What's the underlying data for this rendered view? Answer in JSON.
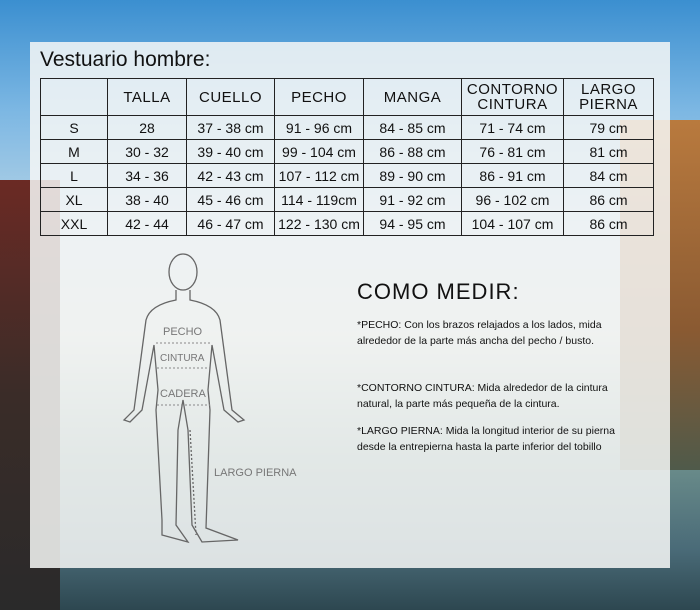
{
  "title": "Vestuario hombre:",
  "table": {
    "headers": [
      "",
      "TALLA",
      "CUELLO",
      "PECHO",
      "MANGA",
      "CONTORNO CINTURA",
      "LARGO PIERNA"
    ],
    "rows": [
      [
        "S",
        "28",
        "37 - 38 cm",
        "91 - 96 cm",
        "84 - 85 cm",
        "71 - 74 cm",
        "79 cm"
      ],
      [
        "M",
        "30 - 32",
        "39 - 40 cm",
        "99 - 104 cm",
        "86 - 88 cm",
        "76 - 81 cm",
        "81 cm"
      ],
      [
        "L",
        "34 - 36",
        "42 - 43 cm",
        "107 - 112 cm",
        "89 - 90 cm",
        "86 - 91 cm",
        "84 cm"
      ],
      [
        "XL",
        "38 - 40",
        "45 - 46 cm",
        "114 - 119cm",
        "91 - 92 cm",
        "96 - 102 cm",
        "86 cm"
      ],
      [
        "XXL",
        "42 - 44",
        "46 - 47 cm",
        "122 - 130 cm",
        "94 - 95 cm",
        "104 - 107 cm",
        "86 cm"
      ]
    ]
  },
  "figure": {
    "labels": [
      "PECHO",
      "CINTURA",
      "CADERA",
      "LARGO PIERNA"
    ]
  },
  "how_to": {
    "heading": "COMO MEDIR:",
    "notes": [
      "*PECHO: Con los brazos relajados a los lados, mida alrededor de la parte más ancha del pecho / busto.",
      "*CONTORNO CINTURA: Mida alrededor de la cintura natural, la parte más pequeña de la cintura.",
      "*LARGO PIERNA: Mida la longitud interior de su pierna desde la entrepierna hasta la parte inferior del tobillo"
    ]
  }
}
